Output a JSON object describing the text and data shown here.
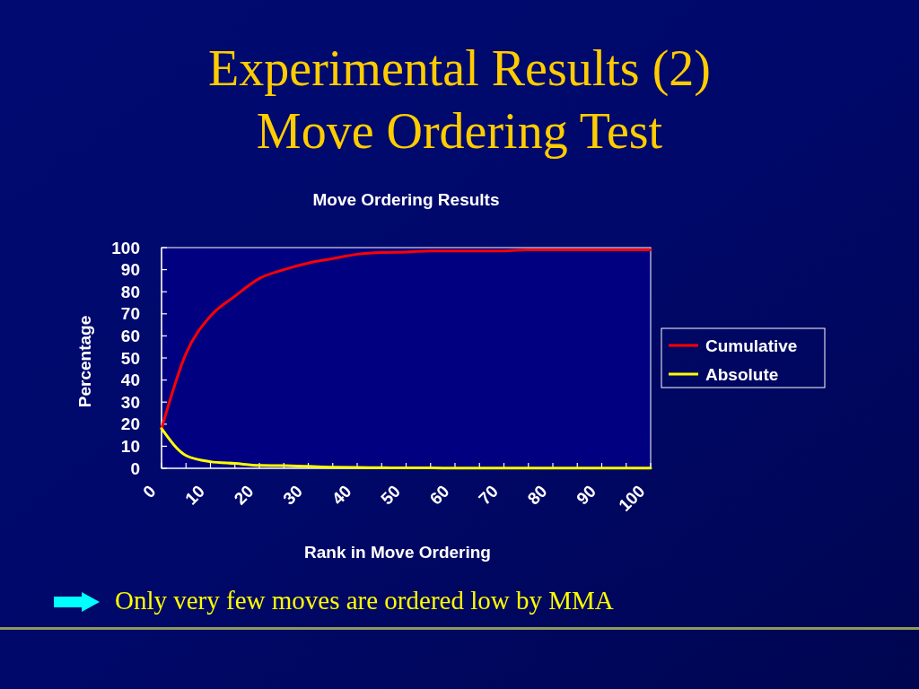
{
  "chart_data": {
    "type": "line",
    "title": "Experimental Results (2)",
    "subtitle": "Move Ordering Test",
    "annotations": [
      "Move Ordering Results",
      "Only very few moves are ordered low by MMA"
    ],
    "xlabel": "Rank in Move Ordering",
    "ylabel": "Percentage",
    "x": [
      0,
      5,
      10,
      15,
      20,
      25,
      30,
      35,
      40,
      45,
      50,
      55,
      60,
      65,
      70,
      75,
      80,
      85,
      90,
      95,
      100
    ],
    "series": [
      {
        "name": "Cumulative",
        "color": "#ff0000",
        "values": [
          18,
          52,
          69,
          78,
          86,
          90,
          93,
          95,
          97,
          97.8,
          98,
          98.5,
          98.5,
          98.5,
          98.5,
          99,
          99,
          99,
          99,
          99,
          99
        ]
      },
      {
        "name": "Absolute",
        "color": "#ffff00",
        "values": [
          18,
          5.8,
          3,
          2.2,
          1.3,
          1.2,
          0.9,
          0.5,
          0.4,
          0.3,
          0.2,
          0.2,
          0.1,
          0.1,
          0.1,
          0.1,
          0.1,
          0.1,
          0.1,
          0.1,
          0.1
        ]
      }
    ],
    "xlim": [
      0,
      100
    ],
    "ylim": [
      0,
      100
    ],
    "xticks": [
      0,
      {
        "value": 5,
        "label": null
      },
      10,
      {
        "value": 15,
        "label": null
      },
      20,
      {
        "value": 25,
        "label": null
      },
      30,
      {
        "value": 35,
        "label": null
      },
      40,
      {
        "value": 45,
        "label": null
      },
      50,
      {
        "value": 55,
        "label": null
      },
      60,
      {
        "value": 65,
        "label": null
      },
      70,
      {
        "value": 75,
        "label": null
      },
      80,
      {
        "value": 85,
        "label": null
      },
      90,
      {
        "value": 95,
        "label": null
      },
      100
    ],
    "yticks": [
      0,
      10,
      20,
      30,
      40,
      50,
      60,
      70,
      80,
      90,
      100
    ],
    "legend": "right"
  }
}
